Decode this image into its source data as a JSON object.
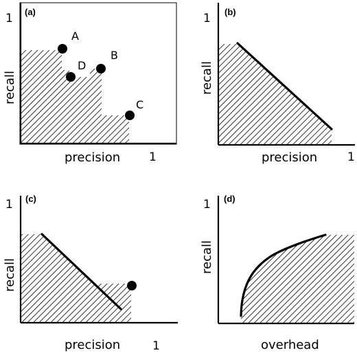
{
  "panels": {
    "a": {
      "letter": "(a)",
      "x_label": "precision",
      "y_label": "recall",
      "x_one": "1",
      "y_one": "1",
      "points": {
        "A": "A",
        "B": "B",
        "C": "C",
        "D": "D"
      }
    },
    "b": {
      "letter": "(b)",
      "x_label": "precision",
      "y_label": "recall",
      "x_one": "1",
      "y_one": "1"
    },
    "c": {
      "letter": "(c)",
      "x_label": "precision",
      "y_label": "recall",
      "x_one": "1",
      "y_one": "1"
    },
    "d": {
      "letter": "(d)",
      "x_label": "overhead",
      "y_label": "recall",
      "y_one": "1"
    }
  }
}
